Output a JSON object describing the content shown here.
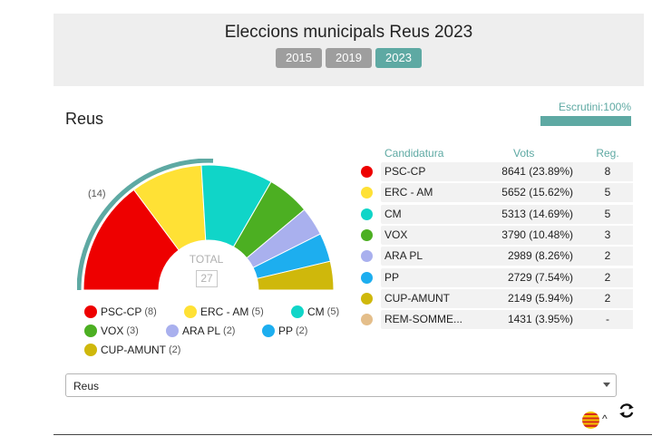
{
  "header": {
    "title": "Eleccions municipals Reus 2023",
    "years": [
      "2015",
      "2019",
      "2023"
    ],
    "active_year": "2023"
  },
  "town": "Reus",
  "escrutini": {
    "label": "Escrutini:100%",
    "fraction": 1.0
  },
  "hemicycle": {
    "seat_note": "(14)",
    "total_label": "TOTAL",
    "total_value": "27"
  },
  "colors": {
    "accent": "#5ea9a3",
    "psc": "#ee0000",
    "erc": "#ffe135",
    "cm": "#10d5c8",
    "vox": "#4caf22",
    "arapl": "#a9b0ee",
    "pp": "#1daeef",
    "cup": "#cfb80b",
    "rem": "#e4be8a"
  },
  "legend": {
    "rows": [
      [
        {
          "name": "PSC-CP",
          "seats": "(8)",
          "color": "#ee0000"
        },
        {
          "name": "ERC - AM",
          "seats": "(5)",
          "color": "#ffe135"
        },
        {
          "name": "CM",
          "seats": "(5)",
          "color": "#10d5c8"
        }
      ],
      [
        {
          "name": "VOX",
          "seats": "(3)",
          "color": "#4caf22"
        },
        {
          "name": "ARA PL",
          "seats": "(2)",
          "color": "#a9b0ee"
        },
        {
          "name": "PP",
          "seats": "(2)",
          "color": "#1daeef"
        }
      ],
      [
        {
          "name": "CUP-AMUNT",
          "seats": "(2)",
          "color": "#cfb80b"
        }
      ]
    ]
  },
  "table": {
    "headers": {
      "party": "Candidatura",
      "votes": "Vots",
      "seats": "Reg."
    },
    "rows": [
      {
        "party": "PSC-CP",
        "votes": "8641 (23.89%)",
        "seats": "8",
        "color": "#ee0000"
      },
      {
        "party": "ERC - AM",
        "votes": "5652 (15.62%)",
        "seats": "5",
        "color": "#ffe135"
      },
      {
        "party": "CM",
        "votes": "5313 (14.69%)",
        "seats": "5",
        "color": "#10d5c8"
      },
      {
        "party": "VOX",
        "votes": "3790 (10.48%)",
        "seats": "3",
        "color": "#4caf22"
      },
      {
        "party": "ARA PL",
        "votes": "2989 (8.26%)",
        "seats": "2",
        "color": "#a9b0ee"
      },
      {
        "party": "PP",
        "votes": "2729 (7.54%)",
        "seats": "2",
        "color": "#1daeef"
      },
      {
        "party": "CUP-AMUNT",
        "votes": "2149 (5.94%)",
        "seats": "2",
        "color": "#cfb80b"
      },
      {
        "party": "REM-SOMME...",
        "votes": "1431 (3.95%)",
        "seats": "-",
        "color": "#e4be8a"
      }
    ]
  },
  "select": {
    "value": "Reus"
  },
  "footer": {
    "flag_icon": "catalan-flag-icon",
    "caret_icon": "caret-up-icon",
    "refresh_icon": "refresh-icon"
  }
}
